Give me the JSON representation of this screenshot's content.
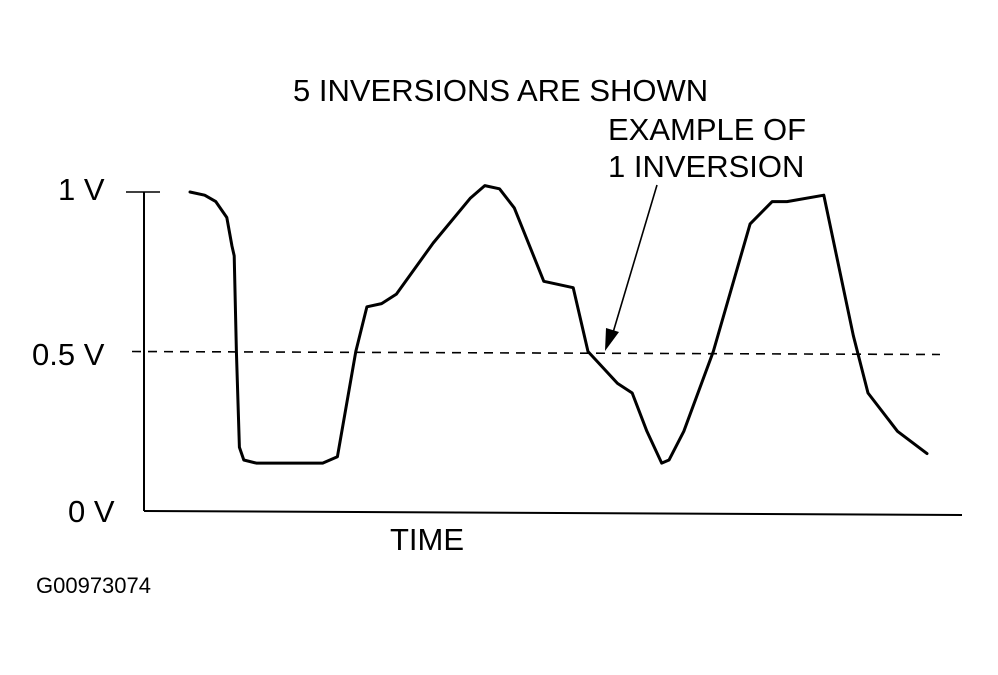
{
  "chart_data": {
    "type": "line",
    "title": "5 INVERSIONS ARE SHOWN",
    "annotation": [
      "EXAMPLE OF",
      "1 INVERSION"
    ],
    "xlabel": "TIME",
    "ylabel": "",
    "y_ticks": [
      "1 V",
      "0.5 V",
      "0 V"
    ],
    "y_tick_values": [
      1,
      0.5,
      0
    ],
    "ylim": [
      0,
      1
    ],
    "reference_line": {
      "value": 0.5,
      "style": "dashed"
    },
    "figure_id": "G00973074",
    "grid": false,
    "series": [
      {
        "name": "",
        "points": [
          [
            0.0,
            1.0
          ],
          [
            0.02,
            0.99
          ],
          [
            0.035,
            0.97
          ],
          [
            0.05,
            0.92
          ],
          [
            0.057,
            0.83
          ],
          [
            0.06,
            0.8
          ],
          [
            0.063,
            0.5
          ],
          [
            0.067,
            0.2
          ],
          [
            0.073,
            0.16
          ],
          [
            0.09,
            0.15
          ],
          [
            0.18,
            0.15
          ],
          [
            0.2,
            0.17
          ],
          [
            0.225,
            0.5
          ],
          [
            0.24,
            0.64
          ],
          [
            0.26,
            0.65
          ],
          [
            0.28,
            0.68
          ],
          [
            0.33,
            0.84
          ],
          [
            0.38,
            0.98
          ],
          [
            0.4,
            1.02
          ],
          [
            0.42,
            1.01
          ],
          [
            0.44,
            0.95
          ],
          [
            0.48,
            0.72
          ],
          [
            0.52,
            0.7
          ],
          [
            0.54,
            0.5
          ],
          [
            0.56,
            0.45
          ],
          [
            0.58,
            0.4
          ],
          [
            0.6,
            0.37
          ],
          [
            0.62,
            0.25
          ],
          [
            0.64,
            0.15
          ],
          [
            0.65,
            0.16
          ],
          [
            0.67,
            0.25
          ],
          [
            0.71,
            0.5
          ],
          [
            0.76,
            0.9
          ],
          [
            0.79,
            0.97
          ],
          [
            0.81,
            0.97
          ],
          [
            0.86,
            0.99
          ],
          [
            0.9,
            0.55
          ],
          [
            0.92,
            0.37
          ],
          [
            0.96,
            0.25
          ],
          [
            1.0,
            0.18
          ]
        ]
      }
    ]
  }
}
